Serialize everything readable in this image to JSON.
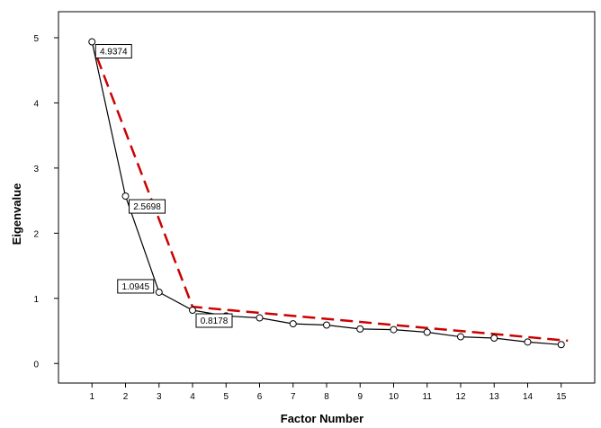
{
  "chart_data": {
    "type": "line",
    "title": "",
    "xlabel": "Factor Number",
    "ylabel": "Eigenvalue",
    "x": [
      1,
      2,
      3,
      4,
      5,
      6,
      7,
      8,
      9,
      10,
      11,
      12,
      13,
      14,
      15
    ],
    "xlim": [
      0,
      16
    ],
    "ylim": [
      -0.3,
      5.4
    ],
    "yticks": [
      0,
      1,
      2,
      3,
      4,
      5
    ],
    "grid": false,
    "legend": "none",
    "series": [
      {
        "values": [
          4.9374,
          2.5698,
          1.0945,
          0.8178,
          0.73,
          0.7,
          0.61,
          0.59,
          0.53,
          0.52,
          0.48,
          0.41,
          0.39,
          0.33,
          0.29
        ],
        "color": "#000000",
        "style": "solid",
        "markers": "open-circle"
      }
    ],
    "trend_lines": [
      {
        "color": "#cc0000",
        "style": "dashed",
        "points": [
          [
            1.15,
            4.7
          ],
          [
            4,
            0.87
          ],
          [
            15.2,
            0.35
          ]
        ]
      }
    ],
    "annotations": [
      {
        "text": "4.9374",
        "x": 1,
        "y": 4.9374
      },
      {
        "text": "2.5698",
        "x": 2,
        "y": 2.5698
      },
      {
        "text": "1.0945",
        "x": 3,
        "y": 1.0945
      },
      {
        "text": "0.8178",
        "x": 4,
        "y": 0.8178
      }
    ]
  }
}
